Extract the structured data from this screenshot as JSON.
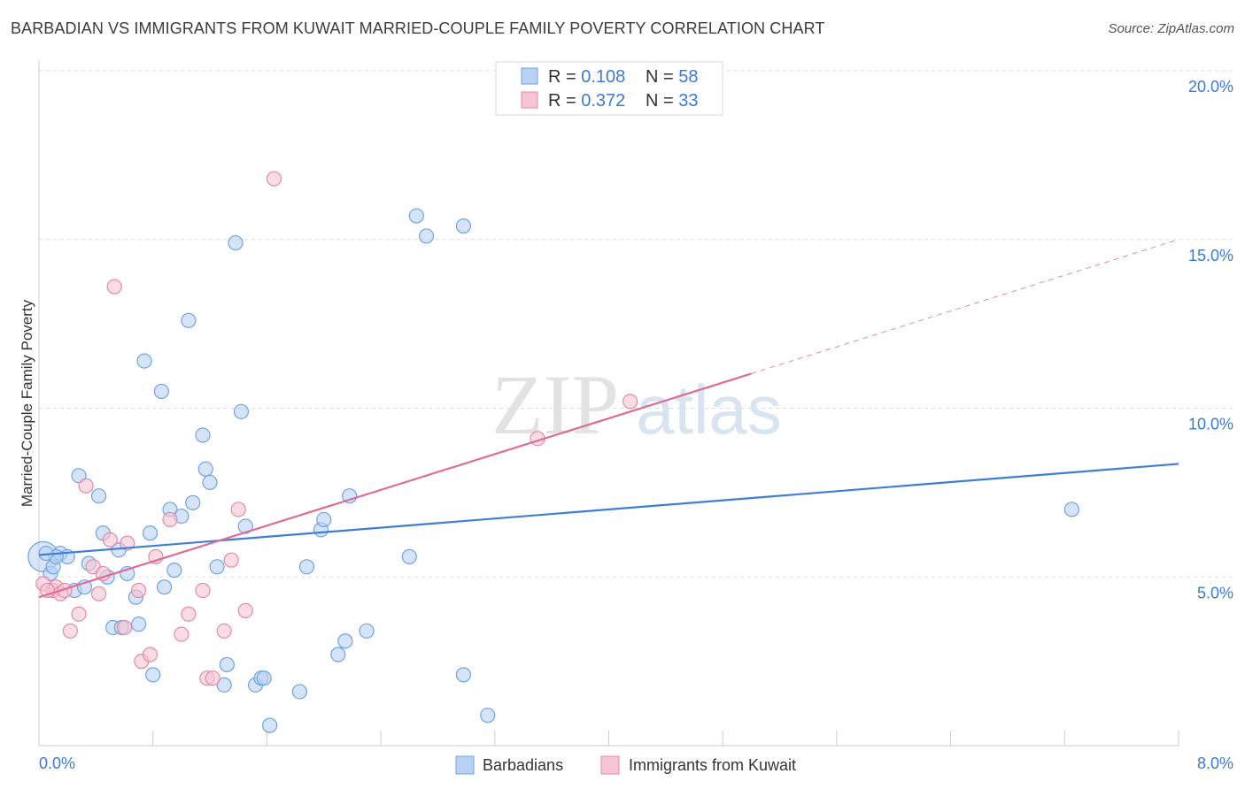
{
  "title": "BARBADIAN VS IMMIGRANTS FROM KUWAIT MARRIED-COUPLE FAMILY POVERTY CORRELATION CHART",
  "source": "Source: ZipAtlas.com",
  "watermark": {
    "zip": "ZIP",
    "atlas": "atlas"
  },
  "chart_data": {
    "type": "scatter",
    "title": "BARBADIAN VS IMMIGRANTS FROM KUWAIT MARRIED-COUPLE FAMILY POVERTY CORRELATION CHART",
    "xlabel": "",
    "ylabel": "Married-Couple Family Poverty",
    "xlim": [
      0,
      8
    ],
    "ylim": [
      0,
      20
    ],
    "x_tick_labels": {
      "min": "0.0%",
      "max": "8.0%"
    },
    "y_ticks": [
      {
        "value": 5,
        "label": "5.0%"
      },
      {
        "value": 10,
        "label": "10.0%"
      },
      {
        "value": 15,
        "label": "15.0%"
      },
      {
        "value": 20,
        "label": "20.0%"
      }
    ],
    "legend_top": [
      {
        "r_label": "R = ",
        "r_value": "0.108",
        "n_label": "N = ",
        "n_value": "58"
      },
      {
        "r_label": "R = ",
        "r_value": "0.372",
        "n_label": "N = ",
        "n_value": "33"
      }
    ],
    "series": [
      {
        "name": "Barbadians",
        "color": "#6fa3e6",
        "fill": "#b9d2f3",
        "line_color": "#3f7ed6",
        "trend": {
          "x0": 0,
          "y0": 5.65,
          "x1": 8.0,
          "y1": 8.35,
          "dash_from": null
        },
        "points": [
          {
            "x": 0.03,
            "y": 5.6,
            "big": true
          },
          {
            "x": 0.08,
            "y": 5.1
          },
          {
            "x": 0.1,
            "y": 5.3
          },
          {
            "x": 0.15,
            "y": 5.7
          },
          {
            "x": 0.2,
            "y": 5.6
          },
          {
            "x": 0.25,
            "y": 4.6
          },
          {
            "x": 0.28,
            "y": 8.0
          },
          {
            "x": 0.32,
            "y": 4.7
          },
          {
            "x": 0.35,
            "y": 5.4
          },
          {
            "x": 0.42,
            "y": 7.4
          },
          {
            "x": 0.45,
            "y": 6.3
          },
          {
            "x": 0.48,
            "y": 5.0
          },
          {
            "x": 0.52,
            "y": 3.5
          },
          {
            "x": 0.56,
            "y": 5.8
          },
          {
            "x": 0.58,
            "y": 3.5
          },
          {
            "x": 0.62,
            "y": 5.1
          },
          {
            "x": 0.68,
            "y": 4.4
          },
          {
            "x": 0.7,
            "y": 3.6
          },
          {
            "x": 0.74,
            "y": 11.4
          },
          {
            "x": 0.78,
            "y": 6.3
          },
          {
            "x": 0.8,
            "y": 2.1
          },
          {
            "x": 0.86,
            "y": 10.5
          },
          {
            "x": 0.88,
            "y": 4.7
          },
          {
            "x": 0.92,
            "y": 7.0
          },
          {
            "x": 0.95,
            "y": 5.2
          },
          {
            "x": 1.0,
            "y": 6.8
          },
          {
            "x": 1.05,
            "y": 12.6
          },
          {
            "x": 1.08,
            "y": 7.2
          },
          {
            "x": 1.15,
            "y": 9.2
          },
          {
            "x": 1.17,
            "y": 8.2
          },
          {
            "x": 1.2,
            "y": 7.8
          },
          {
            "x": 1.25,
            "y": 5.3
          },
          {
            "x": 1.3,
            "y": 1.8
          },
          {
            "x": 1.32,
            "y": 2.4
          },
          {
            "x": 1.38,
            "y": 14.9
          },
          {
            "x": 1.42,
            "y": 9.9
          },
          {
            "x": 1.45,
            "y": 6.5
          },
          {
            "x": 1.52,
            "y": 1.8
          },
          {
            "x": 1.56,
            "y": 2.0
          },
          {
            "x": 1.58,
            "y": 2.0
          },
          {
            "x": 1.62,
            "y": 0.6
          },
          {
            "x": 1.83,
            "y": 1.6
          },
          {
            "x": 1.88,
            "y": 5.3
          },
          {
            "x": 1.98,
            "y": 6.4
          },
          {
            "x": 2.0,
            "y": 6.7
          },
          {
            "x": 2.1,
            "y": 2.7
          },
          {
            "x": 2.15,
            "y": 3.1
          },
          {
            "x": 2.18,
            "y": 7.4
          },
          {
            "x": 2.3,
            "y": 3.4
          },
          {
            "x": 2.6,
            "y": 5.6
          },
          {
            "x": 2.65,
            "y": 15.7
          },
          {
            "x": 2.72,
            "y": 15.1
          },
          {
            "x": 2.98,
            "y": 15.4
          },
          {
            "x": 2.98,
            "y": 2.1
          },
          {
            "x": 3.15,
            "y": 0.9
          },
          {
            "x": 7.25,
            "y": 7.0
          },
          {
            "x": 0.12,
            "y": 5.6
          },
          {
            "x": 0.05,
            "y": 5.7
          }
        ]
      },
      {
        "name": "Immigrants from Kuwait",
        "color": "#e48aa8",
        "fill": "#f6c4d4",
        "line_color": "#e06b95",
        "trend": {
          "x0": 0,
          "y0": 4.4,
          "x1": 8.0,
          "y1": 15.0,
          "dash_from": 5.0
        },
        "points": [
          {
            "x": 0.03,
            "y": 4.8
          },
          {
            "x": 0.1,
            "y": 4.6
          },
          {
            "x": 0.12,
            "y": 4.7
          },
          {
            "x": 0.15,
            "y": 4.5
          },
          {
            "x": 0.18,
            "y": 4.6
          },
          {
            "x": 0.22,
            "y": 3.4
          },
          {
            "x": 0.28,
            "y": 3.9
          },
          {
            "x": 0.33,
            "y": 7.7
          },
          {
            "x": 0.38,
            "y": 5.3
          },
          {
            "x": 0.42,
            "y": 4.5
          },
          {
            "x": 0.45,
            "y": 5.1
          },
          {
            "x": 0.5,
            "y": 6.1
          },
          {
            "x": 0.53,
            "y": 13.6
          },
          {
            "x": 0.6,
            "y": 3.5
          },
          {
            "x": 0.62,
            "y": 6.0
          },
          {
            "x": 0.7,
            "y": 4.6
          },
          {
            "x": 0.72,
            "y": 2.5
          },
          {
            "x": 0.78,
            "y": 2.7
          },
          {
            "x": 0.82,
            "y": 5.6
          },
          {
            "x": 0.92,
            "y": 6.7
          },
          {
            "x": 1.0,
            "y": 3.3
          },
          {
            "x": 1.05,
            "y": 3.9
          },
          {
            "x": 1.15,
            "y": 4.6
          },
          {
            "x": 1.18,
            "y": 2.0
          },
          {
            "x": 1.22,
            "y": 2.0
          },
          {
            "x": 1.3,
            "y": 3.4
          },
          {
            "x": 1.35,
            "y": 5.5
          },
          {
            "x": 1.4,
            "y": 7.0
          },
          {
            "x": 1.45,
            "y": 4.0
          },
          {
            "x": 1.65,
            "y": 16.8
          },
          {
            "x": 3.5,
            "y": 9.1
          },
          {
            "x": 4.15,
            "y": 10.2
          },
          {
            "x": 0.06,
            "y": 4.6
          }
        ]
      }
    ],
    "legend_bottom": [
      "Barbadians",
      "Immigrants from Kuwait"
    ]
  }
}
